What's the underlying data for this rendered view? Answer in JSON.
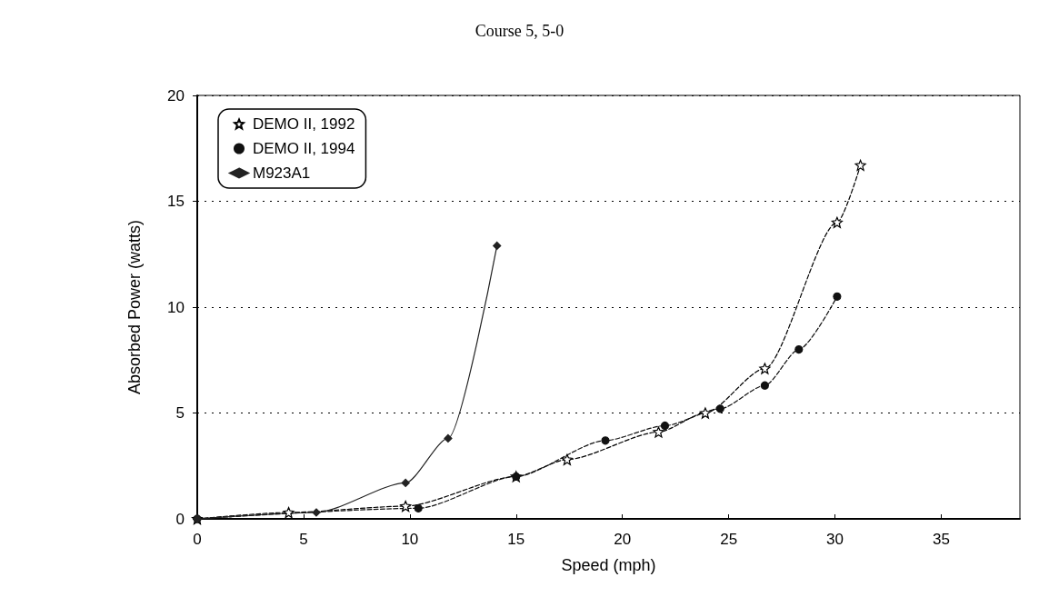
{
  "chart_data": {
    "type": "line",
    "title": "Course 5, 5-0",
    "xlabel": "Speed (mph)",
    "ylabel": "Absorbed Power (watts)",
    "xlim": [
      0,
      38.7
    ],
    "xticks": [
      0,
      5,
      10,
      15,
      20,
      25,
      30,
      35
    ],
    "ylim": [
      0,
      20
    ],
    "yticks": [
      0,
      5,
      10,
      15,
      20
    ],
    "grid": "y",
    "legend": "top left",
    "series": [
      {
        "name": "DEMO II, 1992",
        "color": "#000000",
        "marker": "star",
        "line_style": "dashed",
        "x": [
          0,
          4.3,
          9.8,
          15,
          17.4,
          21.7,
          23.9,
          26.7,
          30.1,
          31.2
        ],
        "values": [
          0,
          0.3,
          0.6,
          2.0,
          2.8,
          4.1,
          5.0,
          7.1,
          14.0,
          16.7
        ]
      },
      {
        "name": "DEMO II, 1994",
        "color": "#111111",
        "marker": "circle",
        "line_style": "dashed",
        "x": [
          0,
          10.4,
          15,
          19.2,
          22,
          24.6,
          26.7,
          28.3,
          30.1
        ],
        "values": [
          0,
          0.5,
          2.0,
          3.7,
          4.4,
          5.2,
          6.3,
          8.0,
          10.5
        ]
      },
      {
        "name": "M923A1",
        "color": "#222222",
        "marker": "diamond",
        "line_style": "solid",
        "x": [
          0,
          5.6,
          9.8,
          11.8,
          14.1
        ],
        "values": [
          0,
          0.3,
          1.7,
          3.8,
          12.9
        ]
      }
    ]
  }
}
